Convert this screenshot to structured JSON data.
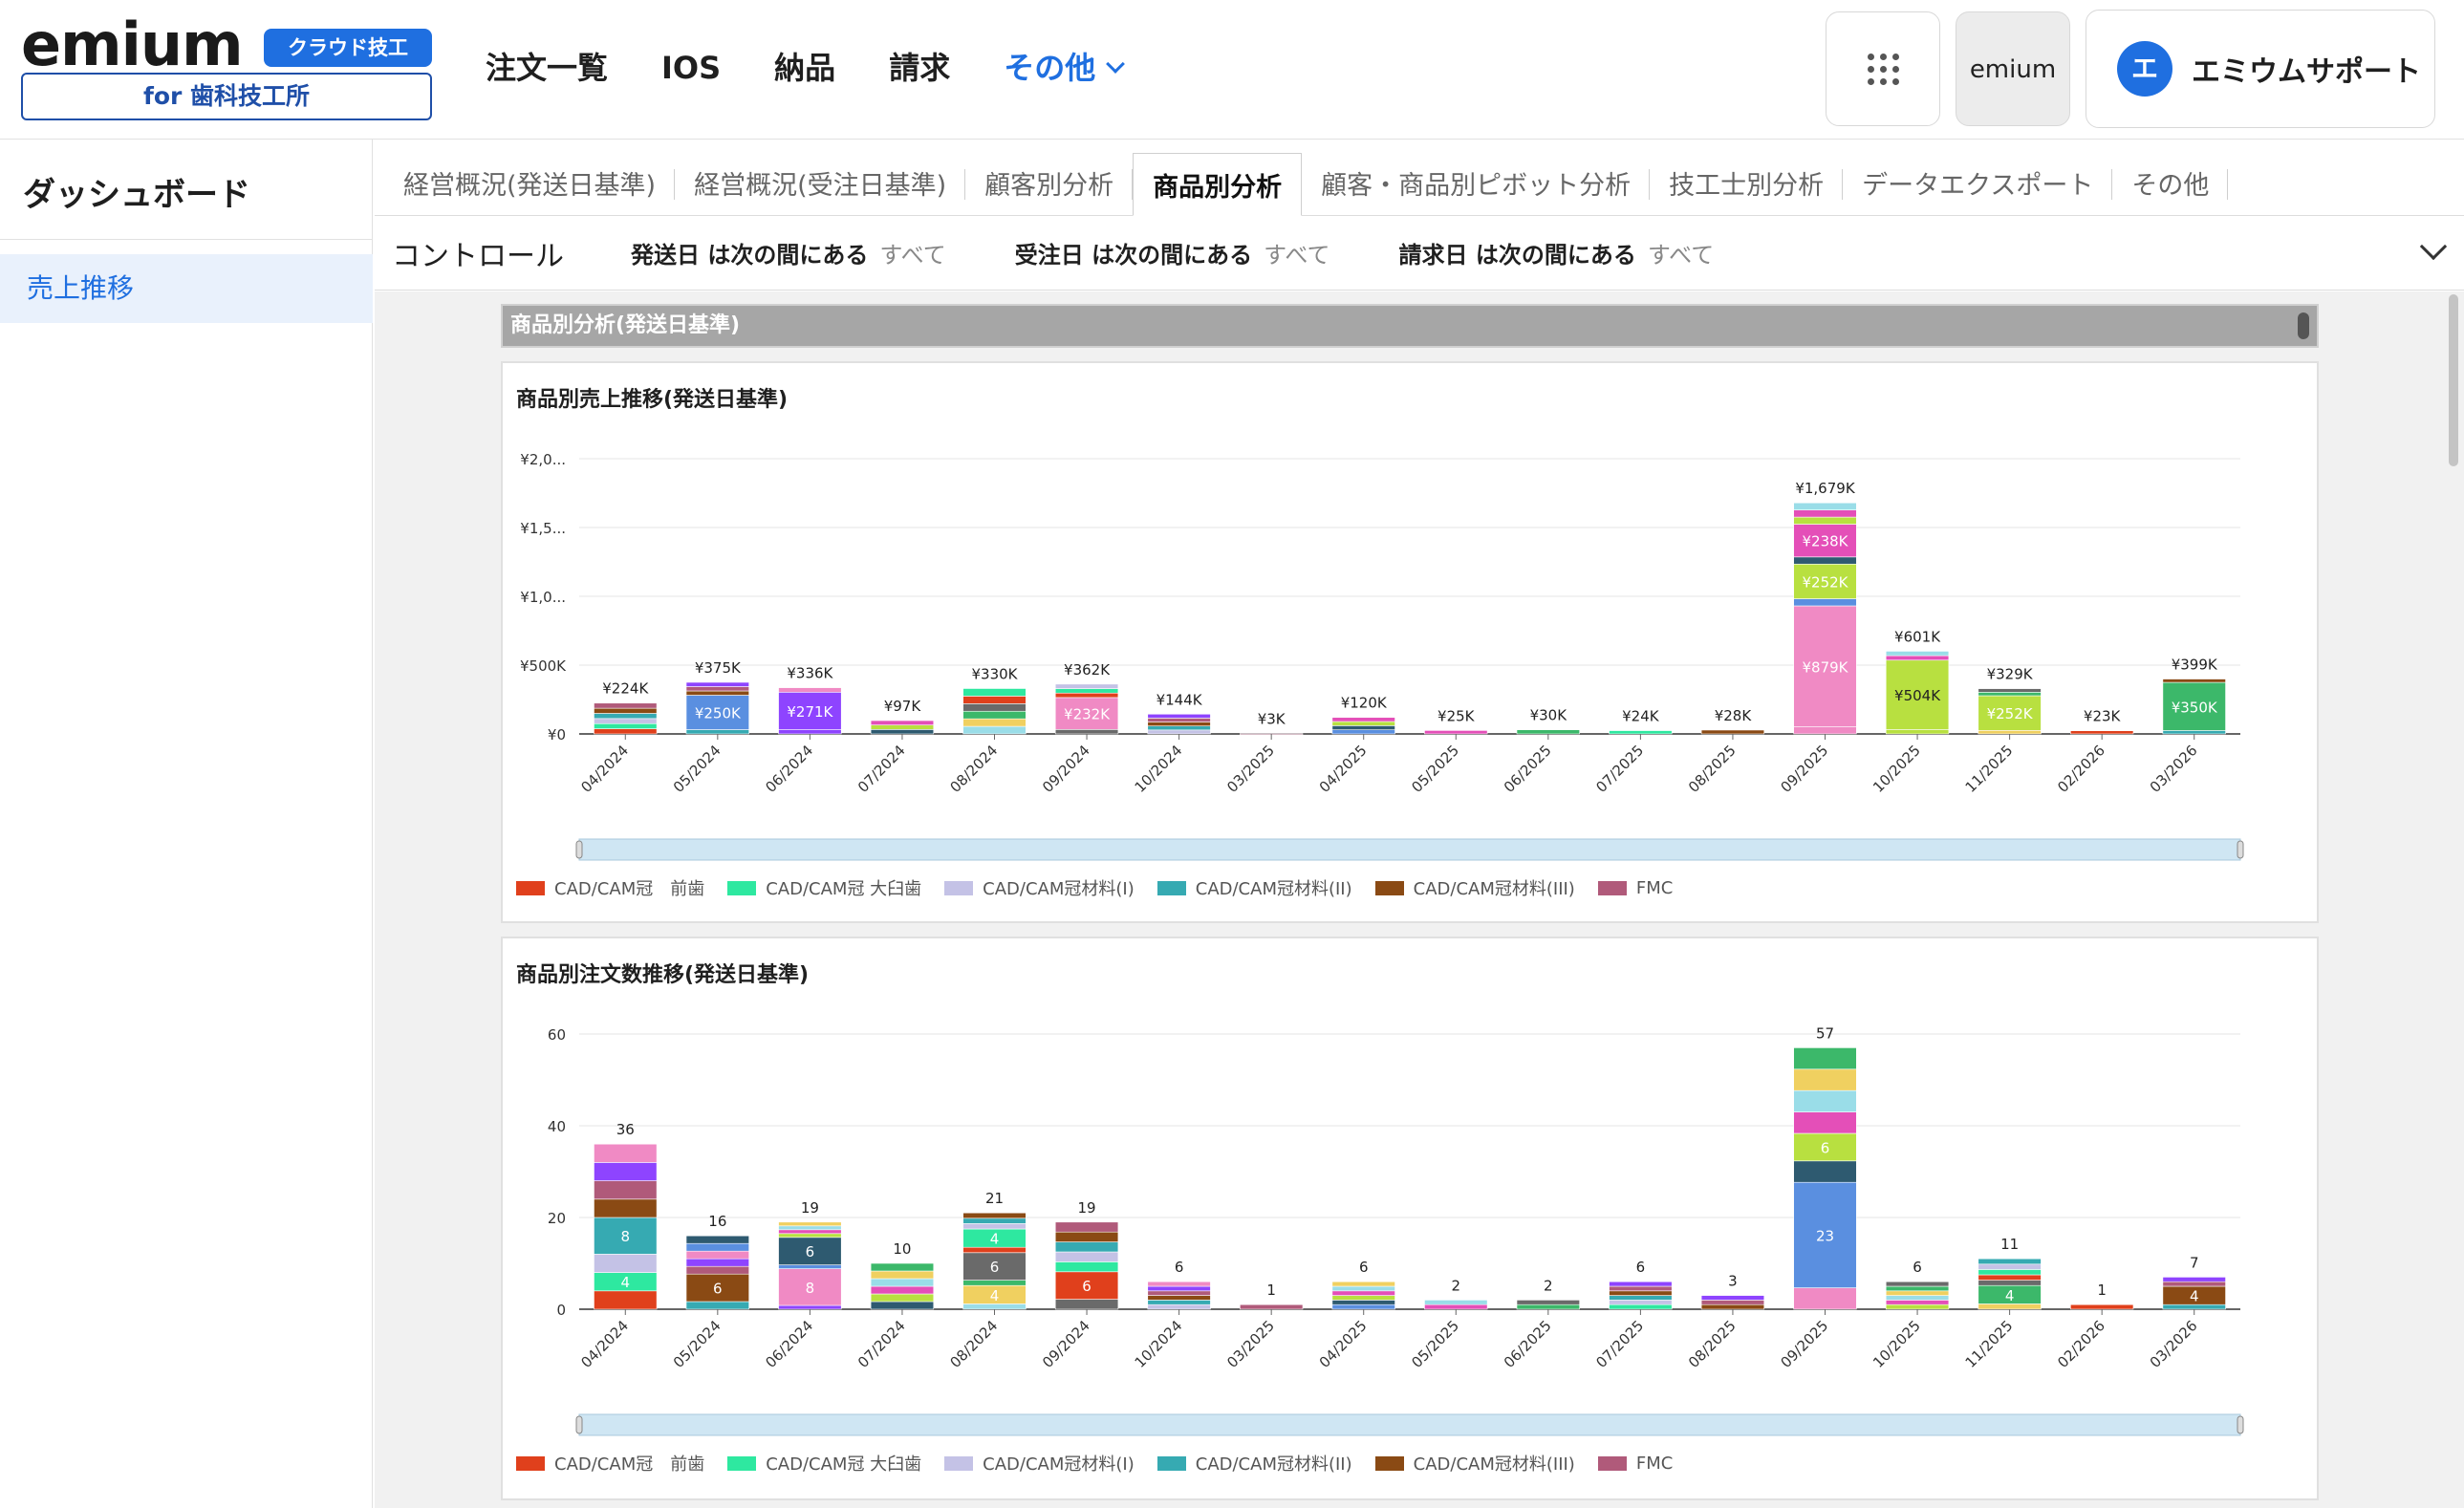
{
  "header": {
    "logo_word": "emium",
    "logo_badge": "クラウド技工",
    "logo_sub": "for 歯科技工所",
    "nav": [
      "注文一覧",
      "IOS",
      "納品",
      "請求"
    ],
    "nav_more": "その他",
    "emium_button": "emium",
    "user_initial": "エ",
    "user_name": "エミウムサポート"
  },
  "sidebar": {
    "title": "ダッシュボード",
    "items": [
      {
        "label": "売上推移"
      }
    ]
  },
  "tabs": [
    {
      "label": "経営概況(発送日基準)",
      "active": false
    },
    {
      "label": "経営概況(受注日基準)",
      "active": false
    },
    {
      "label": "顧客別分析",
      "active": false
    },
    {
      "label": "商品別分析",
      "active": true
    },
    {
      "label": "顧客・商品別ピボット分析",
      "active": false
    },
    {
      "label": "技工士別分析",
      "active": false
    },
    {
      "label": "データエクスポート",
      "active": false
    },
    {
      "label": "その他",
      "active": false
    }
  ],
  "controls": {
    "label": "コントロール",
    "filters": [
      {
        "key": "発送日 は次の間にある",
        "value": "すべて"
      },
      {
        "key": "受注日 は次の間にある",
        "value": "すべて"
      },
      {
        "key": "請求日 は次の間にある",
        "value": "すべて"
      }
    ]
  },
  "section": {
    "title": "商品別分析(発送日基準)"
  },
  "legend": [
    {
      "name": "CAD/CAM冠　前歯",
      "color": "#e0401c"
    },
    {
      "name": "CAD/CAM冠 大臼歯",
      "color": "#2ee8a0"
    },
    {
      "name": "CAD/CAM冠材料(I)",
      "color": "#c4c2e6"
    },
    {
      "name": "CAD/CAM冠材料(II)",
      "color": "#36aab2"
    },
    {
      "name": "CAD/CAM冠材料(III)",
      "color": "#8a4a14"
    },
    {
      "name": "FMC",
      "color": "#b05a7a"
    }
  ],
  "chart_data": [
    {
      "type": "bar",
      "stacked": true,
      "title": "商品別売上推移(発送日基準)",
      "categories": [
        "04/2024",
        "05/2024",
        "06/2024",
        "07/2024",
        "08/2024",
        "09/2024",
        "10/2024",
        "03/2025",
        "04/2025",
        "05/2025",
        "06/2025",
        "07/2025",
        "08/2025",
        "09/2025",
        "10/2025",
        "11/2025",
        "02/2026",
        "03/2026"
      ],
      "y_ticks": [
        "¥0",
        "¥500K",
        "¥1,0...",
        "¥1,5...",
        "¥2,0..."
      ],
      "ylim": [
        0,
        2000000
      ],
      "totals": [
        224000,
        375000,
        336000,
        97000,
        330000,
        362000,
        144000,
        3000,
        120000,
        25000,
        30000,
        24000,
        28000,
        1679000,
        601000,
        329000,
        23000,
        399000
      ],
      "total_labels": [
        "¥224K",
        "¥375K",
        "¥336K",
        "¥97K",
        "¥330K",
        "¥362K",
        "¥144K",
        "¥3K",
        "¥120K",
        "¥25K",
        "¥30K",
        "¥24K",
        "¥28K",
        "¥1,679K",
        "¥601K",
        "¥329K",
        "¥23K",
        "¥399K"
      ],
      "segment_labels": [
        {
          "category": "05/2024",
          "label": "¥250K",
          "value": 250000
        },
        {
          "category": "06/2024",
          "label": "¥271K",
          "value": 271000
        },
        {
          "category": "09/2024",
          "label": "¥232K",
          "value": 232000
        },
        {
          "category": "09/2025",
          "label": "¥879K",
          "value": 879000
        },
        {
          "category": "09/2025",
          "label": "¥252K",
          "value": 252000
        },
        {
          "category": "09/2025",
          "label": "¥238K",
          "value": 238000
        },
        {
          "category": "10/2025",
          "label": "¥504K",
          "value": 504000
        },
        {
          "category": "11/2025",
          "label": "¥252K",
          "value": 252000
        },
        {
          "category": "03/2026",
          "label": "¥350K",
          "value": 350000
        }
      ],
      "legend_placement": "bottom",
      "grid": true
    },
    {
      "type": "bar",
      "stacked": true,
      "title": "商品別注文数推移(発送日基準)",
      "categories": [
        "04/2024",
        "05/2024",
        "06/2024",
        "07/2024",
        "08/2024",
        "09/2024",
        "10/2024",
        "03/2025",
        "04/2025",
        "05/2025",
        "06/2025",
        "07/2025",
        "08/2025",
        "09/2025",
        "10/2025",
        "11/2025",
        "02/2026",
        "03/2026"
      ],
      "y_ticks": [
        "0",
        "20",
        "40",
        "60"
      ],
      "ylim": [
        0,
        60
      ],
      "totals": [
        36,
        16,
        19,
        10,
        21,
        19,
        6,
        1,
        6,
        2,
        2,
        6,
        3,
        57,
        6,
        11,
        1,
        7
      ],
      "segment_labels": [
        {
          "category": "04/2024",
          "label": "4",
          "value": 4
        },
        {
          "category": "04/2024",
          "label": "8",
          "value": 8
        },
        {
          "category": "05/2024",
          "label": "6",
          "value": 6
        },
        {
          "category": "06/2024",
          "label": "8",
          "value": 8
        },
        {
          "category": "06/2024",
          "label": "6",
          "value": 6
        },
        {
          "category": "08/2024",
          "label": "4",
          "value": 4
        },
        {
          "category": "08/2024",
          "label": "6",
          "value": 6
        },
        {
          "category": "08/2024",
          "label": "4",
          "value": 4
        },
        {
          "category": "09/2024",
          "label": "6",
          "value": 6
        },
        {
          "category": "09/2025",
          "label": "23",
          "value": 23
        },
        {
          "category": "09/2025",
          "label": "6",
          "value": 6
        },
        {
          "category": "11/2025",
          "label": "4",
          "value": 4
        },
        {
          "category": "03/2026",
          "label": "4",
          "value": 4
        }
      ],
      "legend_placement": "bottom",
      "grid": true
    }
  ]
}
